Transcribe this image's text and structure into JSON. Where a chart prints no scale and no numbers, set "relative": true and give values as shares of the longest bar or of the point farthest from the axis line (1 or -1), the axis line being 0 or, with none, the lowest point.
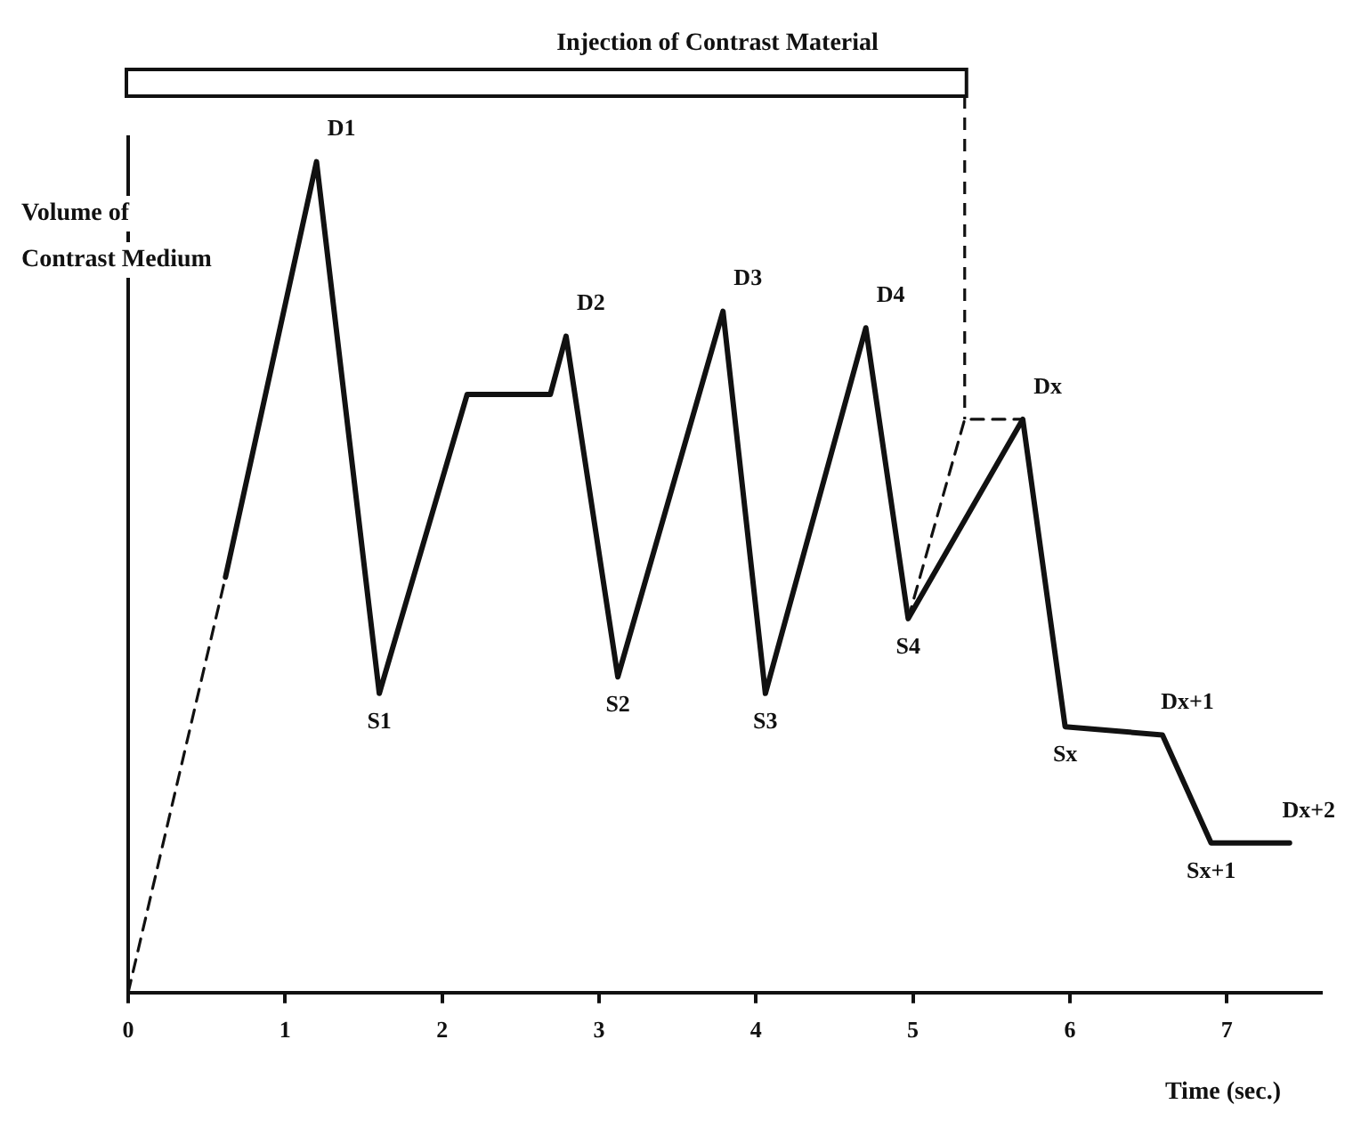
{
  "chart_data": {
    "type": "line",
    "relative": true,
    "title": "Injection of Contrast Material",
    "ylabel": "Volume of Contrast Medium",
    "xlabel": "Time (sec.)",
    "xlim": [
      0,
      7.6
    ],
    "xticks": [
      0,
      1,
      2,
      3,
      4,
      5,
      6,
      7
    ],
    "grid": false,
    "legend": false,
    "marker": "none",
    "series": [
      {
        "color": "#111111",
        "line_style": "solid",
        "x": [
          0.62,
          1.2,
          1.6,
          2.16,
          2.69,
          2.79,
          3.12,
          3.79,
          4.06,
          4.7,
          4.97,
          5.7,
          5.97,
          6.59,
          6.9,
          7.4
        ],
        "values": [
          0.5,
          1.0,
          0.36,
          0.72,
          0.72,
          0.79,
          0.38,
          0.82,
          0.36,
          0.8,
          0.45,
          0.69,
          0.32,
          0.31,
          0.18,
          0.18
        ]
      },
      {
        "color": "#111111",
        "line_style": "dashed",
        "x": [
          0,
          0.62
        ],
        "values": [
          0.0,
          0.5
        ]
      },
      {
        "color": "#111111",
        "line_style": "dashed",
        "x": [
          4.97,
          5.33,
          5.7
        ],
        "values": [
          0.45,
          0.69,
          0.69
        ]
      }
    ],
    "annotations": [
      {
        "text": "D1",
        "x": 1.2,
        "y": 1.0
      },
      {
        "text": "S1",
        "x": 1.6,
        "y": 0.36
      },
      {
        "text": "D2",
        "x": 2.79,
        "y": 0.79
      },
      {
        "text": "S2",
        "x": 3.12,
        "y": 0.38
      },
      {
        "text": "D3",
        "x": 3.79,
        "y": 0.82
      },
      {
        "text": "S3",
        "x": 4.06,
        "y": 0.36
      },
      {
        "text": "D4",
        "x": 4.7,
        "y": 0.8
      },
      {
        "text": "S4",
        "x": 4.97,
        "y": 0.45
      },
      {
        "text": "Dx",
        "x": 5.7,
        "y": 0.69
      },
      {
        "text": "Sx",
        "x": 5.97,
        "y": 0.32
      },
      {
        "text": "Dx+1",
        "x": 6.59,
        "y": 0.31
      },
      {
        "text": "Sx+1",
        "x": 6.9,
        "y": 0.18
      },
      {
        "text": "Dx+2",
        "x": 7.4,
        "y": 0.18
      }
    ]
  }
}
